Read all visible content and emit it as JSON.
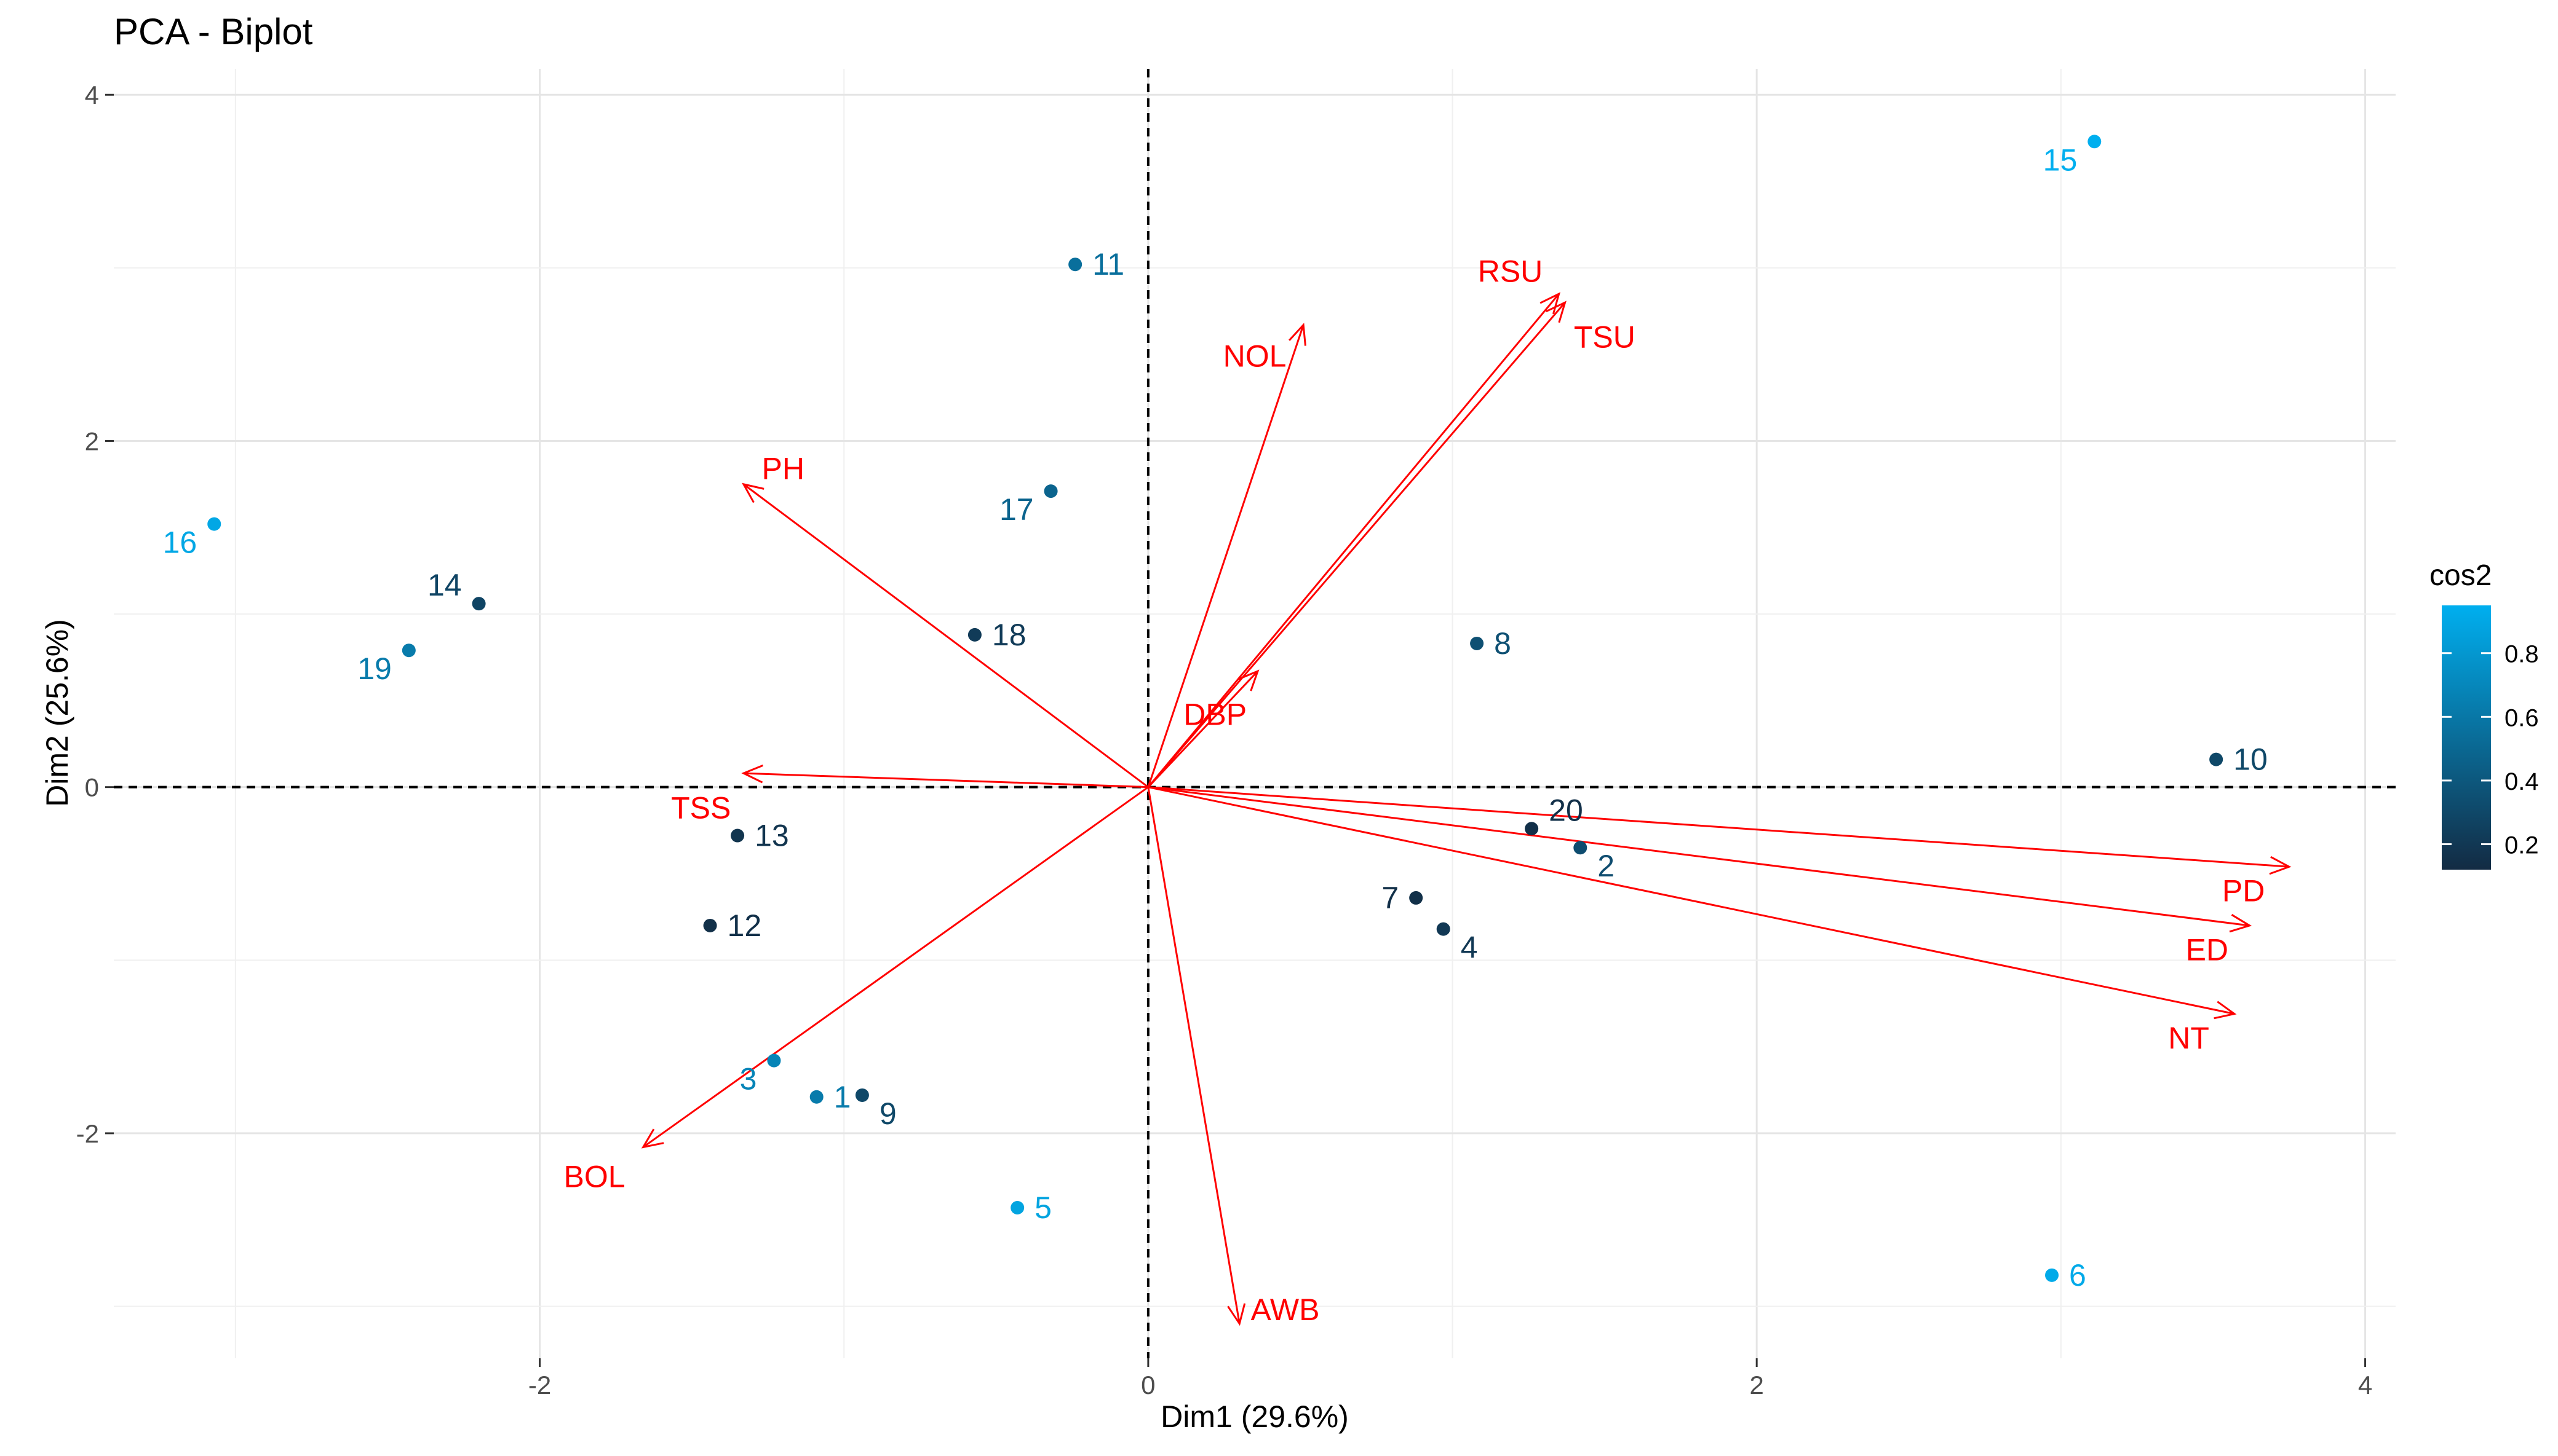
{
  "chart_data": {
    "type": "scatter",
    "title": "PCA - Biplot",
    "xlabel": "Dim1 (29.6%)",
    "ylabel": "Dim2 (25.6%)",
    "xlim": [
      -3.4,
      4.1
    ],
    "ylim": [
      -3.3,
      4.15
    ],
    "xticks": [
      -2,
      0,
      2,
      4
    ],
    "yticks": [
      -2,
      0,
      2,
      4
    ],
    "grid": true,
    "legend": {
      "title": "cos2",
      "position": "right",
      "min": 0.12,
      "max": 0.95,
      "ticks": [
        0.2,
        0.4,
        0.6,
        0.8
      ],
      "tick_labels": [
        "0.2",
        "0.4",
        "0.6",
        "0.8"
      ],
      "low_color": "#132B43",
      "high_color": "#00AFEF"
    },
    "individuals": [
      {
        "label": "1",
        "x": -1.09,
        "y": -1.79,
        "cos2": 0.62
      },
      {
        "label": "2",
        "x": 1.42,
        "y": -0.35,
        "cos2": 0.33
      },
      {
        "label": "3",
        "x": -1.23,
        "y": -1.58,
        "cos2": 0.68
      },
      {
        "label": "4",
        "x": 0.97,
        "y": -0.82,
        "cos2": 0.2
      },
      {
        "label": "5",
        "x": -0.43,
        "y": -2.43,
        "cos2": 0.88
      },
      {
        "label": "6",
        "x": 2.97,
        "y": -2.82,
        "cos2": 0.92
      },
      {
        "label": "7",
        "x": 0.88,
        "y": -0.64,
        "cos2": 0.15
      },
      {
        "label": "8",
        "x": 1.08,
        "y": 0.83,
        "cos2": 0.35
      },
      {
        "label": "9",
        "x": -0.94,
        "y": -1.78,
        "cos2": 0.3
      },
      {
        "label": "10",
        "x": 3.51,
        "y": 0.16,
        "cos2": 0.3
      },
      {
        "label": "11",
        "x": -0.24,
        "y": 3.02,
        "cos2": 0.55
      },
      {
        "label": "12",
        "x": -1.44,
        "y": -0.8,
        "cos2": 0.15
      },
      {
        "label": "13",
        "x": -1.35,
        "y": -0.28,
        "cos2": 0.18
      },
      {
        "label": "14",
        "x": -2.2,
        "y": 1.06,
        "cos2": 0.28
      },
      {
        "label": "15",
        "x": 3.11,
        "y": 3.73,
        "cos2": 0.95
      },
      {
        "label": "16",
        "x": -3.07,
        "y": 1.52,
        "cos2": 0.9
      },
      {
        "label": "17",
        "x": -0.32,
        "y": 1.71,
        "cos2": 0.48
      },
      {
        "label": "18",
        "x": -0.57,
        "y": 0.88,
        "cos2": 0.22
      },
      {
        "label": "19",
        "x": -2.43,
        "y": 0.79,
        "cos2": 0.62
      },
      {
        "label": "20",
        "x": 1.26,
        "y": -0.24,
        "cos2": 0.15
      }
    ],
    "variables": [
      {
        "label": "NOL",
        "x": 0.51,
        "y": 2.67,
        "label_x": 0.35,
        "label_y": 2.49
      },
      {
        "label": "RSU",
        "x": 1.35,
        "y": 2.85,
        "label_x": 1.19,
        "label_y": 2.98
      },
      {
        "label": "TSU",
        "x": 1.37,
        "y": 2.8,
        "label_x": 1.5,
        "label_y": 2.6
      },
      {
        "label": "PH",
        "x": -1.33,
        "y": 1.75,
        "label_x": -1.2,
        "label_y": 1.84
      },
      {
        "label": "DBP",
        "x": 0.36,
        "y": 0.67,
        "label_x": 0.22,
        "label_y": 0.42
      },
      {
        "label": "TSS",
        "x": -1.33,
        "y": 0.08,
        "label_x": -1.47,
        "label_y": -0.12
      },
      {
        "label": "BOL",
        "x": -1.66,
        "y": -2.08,
        "label_x": -1.82,
        "label_y": -2.25
      },
      {
        "label": "AWB",
        "x": 0.3,
        "y": -3.1,
        "label_x": 0.45,
        "label_y": -3.02
      },
      {
        "label": "PD",
        "x": 3.75,
        "y": -0.46,
        "label_x": 3.6,
        "label_y": -0.6
      },
      {
        "label": "ED",
        "x": 3.62,
        "y": -0.8,
        "label_x": 3.48,
        "label_y": -0.94
      },
      {
        "label": "NT",
        "x": 3.57,
        "y": -1.31,
        "label_x": 3.42,
        "label_y": -1.45
      }
    ]
  }
}
